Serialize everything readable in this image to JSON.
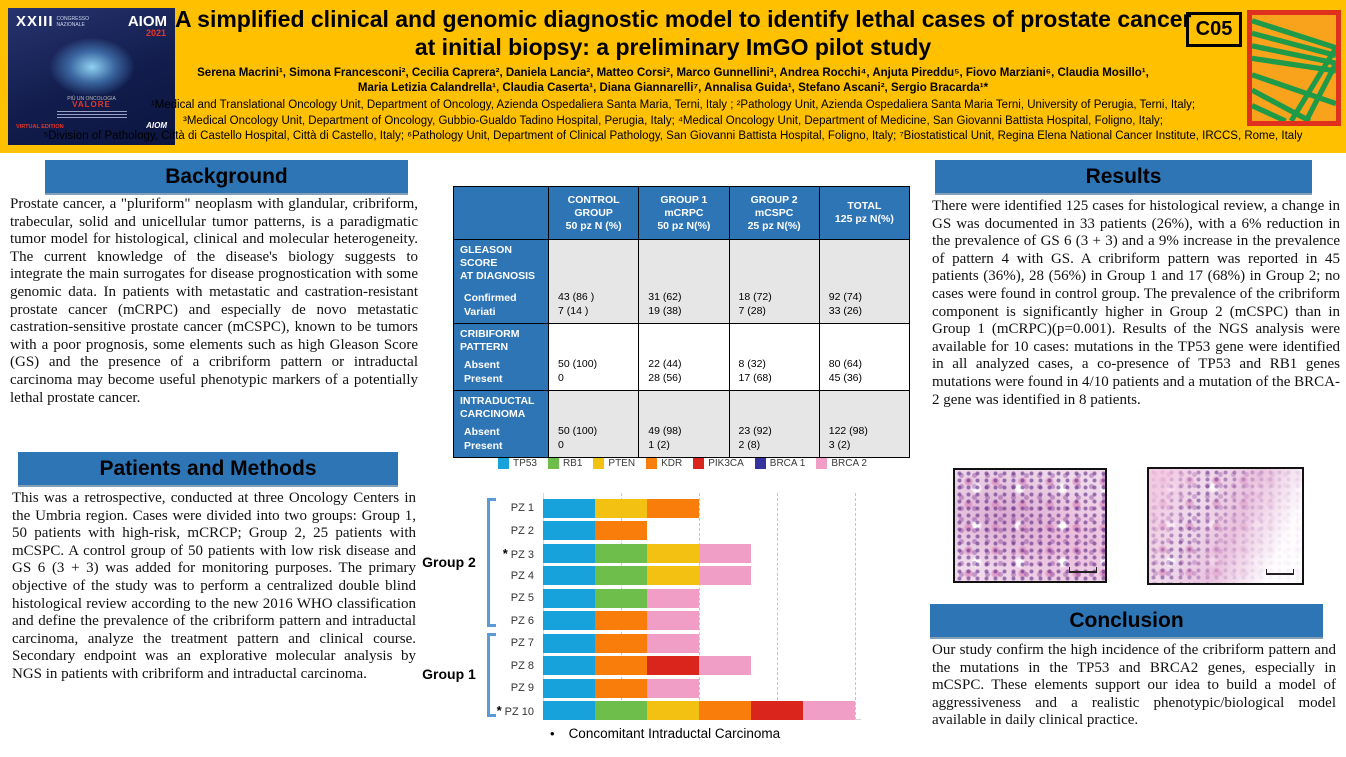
{
  "poster": {
    "code_badge": "C05",
    "title_line1": "A simplified clinical and genomic diagnostic model to identify lethal cases of prostate cancer",
    "title_line2": "at initial biopsy: a preliminary ImGO pilot study",
    "authors_line1": "Serena Macrini¹, Simona Francesconi², Cecilia Caprera², Daniela Lancia², Matteo Corsi², Marco Gunnellini³, Andrea Rocchi⁴, Anjuta Pireddu⁵, Fiovo Marziani⁶, Claudia Mosillo¹,",
    "authors_line2": "Maria Letizia Calandrella¹, Claudia Caserta¹, Diana Giannarelli⁷, Annalisa Guida¹, Stefano Ascani², Sergio Bracarda¹*",
    "affiliations": [
      "¹Medical and Translational Oncology Unit, Department of Oncology, Azienda Ospedaliera Santa Maria, Terni, Italy ; ²Pathology Unit, Azienda Ospedaliera Santa Maria Terni, University of Perugia, Terni, Italy;",
      "³Medical Oncology Unit, Department of Oncology, Gubbio-Gualdo Tadino Hospital, Perugia, Italy; ⁴Medical Oncology Unit, Department of Medicine, San Giovanni Battista Hospital, Foligno, Italy;",
      "⁵Division of Pathology, Città di Castello Hospital, Città di Castello, Italy; ⁶Pathology Unit, Department of Clinical Pathology, San Giovanni Battista Hospital, Foligno, Italy; ⁷Biostatistical Unit, Regina Elena National Cancer Institute, IRCCS, Rome, Italy"
    ],
    "aiom_logo": {
      "roman": "XXIII",
      "congress": "CONGRESSO NAZIONALE",
      "name": "AIOM",
      "year": "2021",
      "tag_small": "PIÙ UN ONCOLOGIA",
      "tag": "VALORE",
      "edition": "VIRTUAL EDITION",
      "mark": "AIOM"
    }
  },
  "colors": {
    "header_bg": "#FFC000",
    "section_header_bg": "#2E75B6",
    "table_label_bg": "#2E75B6",
    "table_alt_row": "#E7E6E6",
    "bracket_blue": "#5B9BD5",
    "imgo_border": "#E0301E",
    "imgo_bg": "#F9A21B",
    "imgo_stripes": "#1F9A48"
  },
  "sections": {
    "background": {
      "heading": "Background",
      "text": "Prostate cancer, a \"pluriform\" neoplasm with glandular, cribriform, trabecular, solid and unicellular tumor patterns, is a paradigmatic tumor model for histological, clinical and molecular heterogeneity. The current knowledge of the disease's biology suggests to integrate the main surrogates for disease prognostication with some genomic data. In patients with metastatic and castration-resistant prostate cancer (mCRPC) and especially de novo metastatic castration-sensitive prostate cancer (mCSPC), known to be tumors with a poor prognosis, some elements such as high Gleason Score (GS) and the presence of a cribriform pattern or intraductal carcinoma may become useful phenotypic markers of a potentially lethal prostate cancer."
    },
    "methods": {
      "heading": "Patients and Methods",
      "text": "This was a retrospective, conducted at three Oncology Centers in the Umbria region. Cases were divided into two groups: Group 1, 50 patients with high-risk, mCRCP; Group 2, 25 patients with mCSPC. A control group of 50 patients with low risk disease and GS 6 (3 + 3) was added for monitoring purposes. The primary objective of the study was to perform a centralized double blind histological review according to the new 2016 WHO classification and define the prevalence of the cribriform pattern and intraductal carcinoma, analyze the treatment pattern and clinical course. Secondary endpoint was an explorative molecular analysis by NGS in patients with cribriform and intraductal carcinoma."
    },
    "results": {
      "heading": "Results",
      "text": "There were identified 125 cases for histological review, a change in GS was documented in 33 patients (26%), with a 6% reduction in the prevalence of GS 6 (3 + 3) and a 9% increase in the prevalence of pattern 4 with GS. A cribriform pattern was reported in 45 patients (36%), 28 (56%) in Group 1 and 17 (68%) in Group 2; no cases were found in control group. The prevalence of the cribriform component is significantly higher in Group 2 (mCSPC) than in Group 1 (mCRPC)(p=0.001). Results of the NGS analysis were available for 10 cases: mutations in the TP53 gene were identified in all analyzed cases, a co-presence of TP53 and RB1 genes mutations were found in 4/10 patients and a mutation of the BRCA-2 gene was identified in 8 patients."
    },
    "conclusion": {
      "heading": "Conclusion",
      "text": "Our study confirm the high incidence of the cribriform pattern and the mutations in the TP53 and BRCA2 genes, especially in mCSPC. These elements support our idea to build a model of aggressiveness and a realistic phenotypic/biological model available in daily clinical practice."
    }
  },
  "table": {
    "col_headers": [
      "CONTROL\nGROUP\n50 pz N (%)",
      "GROUP 1\nmCRPC\n50 pz N(%)",
      "GROUP 2\nmCSPC\n25 pz N(%)",
      "TOTAL\n125 pz N(%)"
    ],
    "rows": [
      {
        "label": "GLEASON SCORE\nAT DIAGNOSIS",
        "sublabels": "Confirmed\nVariati",
        "cells": [
          "43 (86 )\n7  (14 )",
          "31 (62)\n19 (38)",
          "18 (72)\n7 (28)",
          "92 (74)\n33 (26)"
        ]
      },
      {
        "label": "CRIBIFORM\nPATTERN",
        "sublabels": "Absent\nPresent",
        "cells": [
          "50 (100)\n0",
          "22 (44)\n28 (56)",
          "8 (32)\n17 (68)",
          "80 (64)\n45 (36)"
        ]
      },
      {
        "label": "INTRADUCTAL\nCARCINOMA",
        "sublabels": "Absent\nPresent",
        "cells": [
          "50 (100)\n0",
          "49 (98)\n1 (2)",
          "23 (92)\n2 (8)",
          "122 (98)\n3 (2)"
        ]
      }
    ]
  },
  "chart_data": {
    "type": "bar",
    "orientation": "horizontal",
    "stacked": true,
    "title": "",
    "xlabel": "",
    "ylabel": "",
    "grid": "dashed-vertical",
    "legend_position": "top-center",
    "segment_unit": "one detected gene mutation per colored segment",
    "legend": [
      {
        "name": "TP53",
        "color": "#18A2DC"
      },
      {
        "name": "RB1",
        "color": "#6DBE4B"
      },
      {
        "name": "PTEN",
        "color": "#F3C112"
      },
      {
        "name": "KDR",
        "color": "#F97D0B"
      },
      {
        "name": "PIK3CA",
        "color": "#DA251C"
      },
      {
        "name": "BRCA 1",
        "color": "#34349C"
      },
      {
        "name": "BRCA 2",
        "color": "#F19EC6"
      }
    ],
    "bars": [
      {
        "label": "PZ 1",
        "asterisk": false,
        "segments": [
          "TP53",
          "PTEN",
          "KDR"
        ]
      },
      {
        "label": "PZ 2",
        "asterisk": false,
        "segments": [
          "TP53",
          "KDR"
        ]
      },
      {
        "label": "PZ 3",
        "asterisk": true,
        "segments": [
          "TP53",
          "RB1",
          "PTEN",
          "BRCA 2"
        ]
      },
      {
        "label": "PZ 4",
        "asterisk": false,
        "segments": [
          "TP53",
          "RB1",
          "PTEN",
          "BRCA 2"
        ]
      },
      {
        "label": "PZ 5",
        "asterisk": false,
        "segments": [
          "TP53",
          "RB1",
          "BRCA 2"
        ]
      },
      {
        "label": "PZ 6",
        "asterisk": false,
        "segments": [
          "TP53",
          "KDR",
          "BRCA 2"
        ]
      },
      {
        "label": "PZ 7",
        "asterisk": false,
        "segments": [
          "TP53",
          "KDR",
          "BRCA 2"
        ]
      },
      {
        "label": "PZ 8",
        "asterisk": false,
        "segments": [
          "TP53",
          "KDR",
          "PIK3CA",
          "BRCA 2"
        ]
      },
      {
        "label": "PZ 9",
        "asterisk": false,
        "segments": [
          "TP53",
          "KDR",
          "BRCA 2"
        ]
      },
      {
        "label": "PZ 10",
        "asterisk": true,
        "segments": [
          "TP53",
          "RB1",
          "PTEN",
          "KDR",
          "PIK3CA",
          "BRCA 2"
        ]
      }
    ],
    "groups": [
      {
        "label": "Group 2",
        "bars": [
          "PZ 1",
          "PZ 2",
          "PZ 3",
          "PZ 4",
          "PZ 5",
          "PZ 6"
        ]
      },
      {
        "label": "Group 1",
        "bars": [
          "PZ 7",
          "PZ 8",
          "PZ 9",
          "PZ 10"
        ]
      }
    ],
    "asterisk_bullet": "•",
    "asterisk_note": "Concomitant Intraductal Carcinoma"
  }
}
